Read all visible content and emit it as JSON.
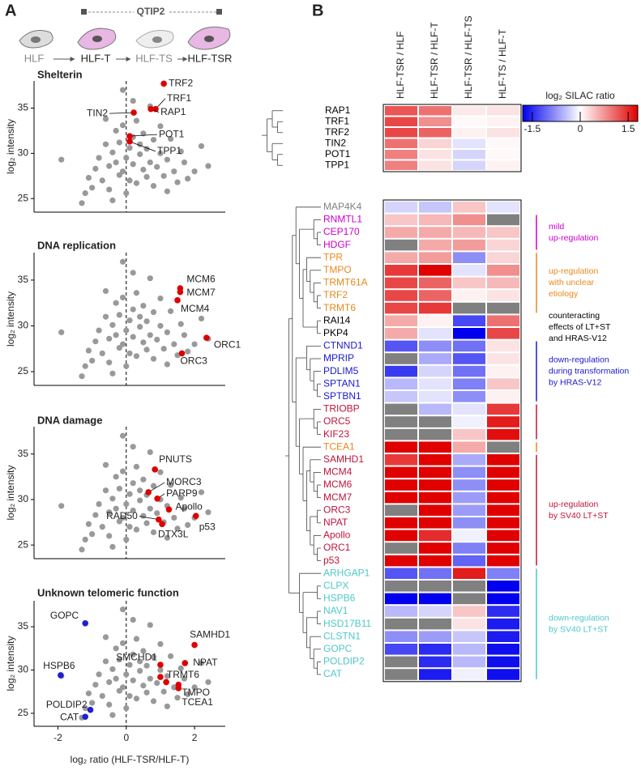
{
  "panels": [
    "A",
    "B"
  ],
  "schematic": {
    "cells": [
      "HLF",
      "HLF-T",
      "HLF-TS",
      "HLF-TSR"
    ],
    "construct": "QTIP2"
  },
  "chart_data": [
    {
      "type": "scatter",
      "title": "Shelterin",
      "color": "#999999",
      "x": [
        -1.9,
        -1.3,
        -1.2,
        -1.1,
        -1.0,
        -0.9,
        -0.8,
        -0.7,
        -0.6,
        -0.5,
        -0.5,
        -0.4,
        -0.3,
        -0.3,
        -0.2,
        -0.2,
        -0.1,
        -0.1,
        0.0,
        0.0,
        0.1,
        0.1,
        0.2,
        0.2,
        0.3,
        0.3,
        0.4,
        0.4,
        0.5,
        0.5,
        0.6,
        0.6,
        0.7,
        0.7,
        0.8,
        0.8,
        0.9,
        1.0,
        1.0,
        1.1,
        1.2,
        1.3,
        1.4,
        1.5,
        1.6,
        1.7,
        1.8,
        2.0,
        2.2,
        2.4,
        -0.1,
        -0.6,
        0.2,
        -0.4,
        1.2
      ],
      "values": [
        29.3,
        24.5,
        25.6,
        27.3,
        26.2,
        28.3,
        29.5,
        27.0,
        31.0,
        28.6,
        26.0,
        30.1,
        29.0,
        32.5,
        27.6,
        31.2,
        33.1,
        28.0,
        29.5,
        25.6,
        30.6,
        27.0,
        31.8,
        28.8,
        33.6,
        26.7,
        29.9,
        31.0,
        28.2,
        32.2,
        30.5,
        27.4,
        35.2,
        29.0,
        31.5,
        26.4,
        28.5,
        30.0,
        33.0,
        27.5,
        29.3,
        31.6,
        28.0,
        26.8,
        30.2,
        29.0,
        27.2,
        28.0,
        30.8,
        28.6,
        37.0,
        33.8,
        35.8,
        24.8,
        25.8
      ],
      "highlights": [
        {
          "color": "#dd0000",
          "x": [
            1.1,
            0.86,
            0.72,
            0.22,
            0.1,
            0.1
          ],
          "values": [
            37.7,
            34.9,
            34.9,
            34.5,
            31.9,
            31.3
          ],
          "labels": [
            "TRF2",
            "TRF1",
            "RAP1",
            "TIN2",
            "POT1",
            "TPP1"
          ]
        }
      ],
      "xlim": [
        -2.7,
        2.9
      ],
      "ylim": [
        23.5,
        38
      ],
      "yticks": [
        25,
        30,
        35
      ],
      "ylabel": "log₂ intensity",
      "vline": 0
    },
    {
      "type": "scatter",
      "title": "DNA replication",
      "color": "#999999",
      "x": [
        -1.9,
        -1.3,
        -1.2,
        -1.1,
        -1.0,
        -0.9,
        -0.8,
        -0.7,
        -0.6,
        -0.5,
        -0.5,
        -0.4,
        -0.3,
        -0.3,
        -0.2,
        -0.2,
        -0.1,
        -0.1,
        0.0,
        0.0,
        0.1,
        0.1,
        0.2,
        0.2,
        0.3,
        0.3,
        0.4,
        0.4,
        0.5,
        0.5,
        0.6,
        0.6,
        0.7,
        0.7,
        0.8,
        0.8,
        0.9,
        1.0,
        1.0,
        1.1,
        1.2,
        1.3,
        1.4,
        1.5,
        1.6,
        1.7,
        1.8,
        2.0,
        2.2,
        2.4,
        -0.1,
        -0.6,
        0.2,
        -0.4,
        1.2
      ],
      "values": [
        29.3,
        24.5,
        25.6,
        27.3,
        26.2,
        28.3,
        29.5,
        27.0,
        31.0,
        28.6,
        26.0,
        30.1,
        29.0,
        32.5,
        27.6,
        31.2,
        33.1,
        28.0,
        29.5,
        25.6,
        30.6,
        27.0,
        31.8,
        28.8,
        33.6,
        26.7,
        29.9,
        31.0,
        28.2,
        32.2,
        30.5,
        27.4,
        35.2,
        29.0,
        31.5,
        26.4,
        28.5,
        30.0,
        33.0,
        27.5,
        29.3,
        31.6,
        28.0,
        26.8,
        30.2,
        29.0,
        27.2,
        28.0,
        30.8,
        28.6,
        37.0,
        33.8,
        35.8,
        24.8,
        25.8
      ],
      "highlights": [
        {
          "color": "#dd0000",
          "x": [
            1.58,
            1.58,
            1.5,
            2.35,
            1.63
          ],
          "values": [
            34.1,
            33.7,
            32.8,
            28.7,
            27.0
          ],
          "labels": [
            "MCM6",
            "MCM7",
            "MCM4",
            "ORC1",
            "ORC3"
          ]
        }
      ],
      "xlim": [
        -2.7,
        2.9
      ],
      "ylim": [
        23.5,
        38
      ],
      "yticks": [
        25,
        30,
        35
      ],
      "ylabel": "log₂ intensity",
      "vline": 0
    },
    {
      "type": "scatter",
      "title": "DNA damage",
      "color": "#999999",
      "x": [
        -1.9,
        -1.3,
        -1.2,
        -1.1,
        -1.0,
        -0.9,
        -0.8,
        -0.7,
        -0.6,
        -0.5,
        -0.5,
        -0.4,
        -0.3,
        -0.3,
        -0.2,
        -0.2,
        -0.1,
        -0.1,
        0.0,
        0.0,
        0.1,
        0.1,
        0.2,
        0.2,
        0.3,
        0.3,
        0.4,
        0.4,
        0.5,
        0.5,
        0.6,
        0.6,
        0.7,
        0.7,
        0.8,
        0.8,
        0.9,
        1.0,
        1.0,
        1.1,
        1.2,
        1.3,
        1.4,
        1.5,
        1.6,
        1.7,
        1.8,
        2.0,
        2.2,
        2.4,
        -0.1,
        -0.6,
        0.2,
        -0.4,
        1.2
      ],
      "values": [
        29.3,
        24.5,
        25.6,
        27.3,
        26.2,
        28.3,
        29.5,
        27.0,
        31.0,
        28.6,
        26.0,
        30.1,
        29.0,
        32.5,
        27.6,
        31.2,
        33.1,
        28.0,
        29.5,
        25.6,
        30.6,
        27.0,
        31.8,
        28.8,
        33.6,
        26.7,
        29.9,
        31.0,
        28.2,
        32.2,
        30.5,
        27.4,
        35.2,
        29.0,
        31.5,
        26.4,
        28.5,
        30.0,
        33.0,
        27.5,
        29.3,
        31.6,
        28.0,
        26.8,
        30.2,
        29.0,
        27.2,
        28.0,
        30.8,
        28.6,
        37.0,
        33.8,
        35.8,
        24.8,
        25.8
      ],
      "highlights": [
        {
          "color": "#dd0000",
          "x": [
            0.84,
            0.65,
            0.91,
            1.25,
            2.04,
            0.95,
            1.05
          ],
          "values": [
            33.3,
            30.8,
            30.1,
            28.9,
            28.2,
            27.8,
            27.3
          ],
          "labels": [
            "PNUTS",
            "MORC3",
            "PARP9",
            "Apollo",
            "p53",
            "RAD50",
            "DTX3L"
          ]
        }
      ],
      "xlim": [
        -2.7,
        2.9
      ],
      "ylim": [
        23.5,
        38
      ],
      "yticks": [
        25,
        30,
        35
      ],
      "ylabel": "log₂ intensity",
      "vline": 0
    },
    {
      "type": "scatter",
      "title": "Unknown telomeric function",
      "color": "#999999",
      "x": [
        -1.9,
        -1.3,
        -1.2,
        -1.1,
        -1.0,
        -0.9,
        -0.8,
        -0.7,
        -0.6,
        -0.5,
        -0.5,
        -0.4,
        -0.3,
        -0.3,
        -0.2,
        -0.2,
        -0.1,
        -0.1,
        0.0,
        0.0,
        0.1,
        0.1,
        0.2,
        0.2,
        0.3,
        0.3,
        0.4,
        0.4,
        0.5,
        0.5,
        0.6,
        0.6,
        0.7,
        0.7,
        0.8,
        0.8,
        0.9,
        1.0,
        1.0,
        1.1,
        1.2,
        1.3,
        1.4,
        1.5,
        1.6,
        1.7,
        1.8,
        2.0,
        2.2,
        2.4,
        -0.1,
        -0.6,
        0.2,
        -0.4,
        1.2
      ],
      "values": [
        29.3,
        24.5,
        25.6,
        27.3,
        26.2,
        28.3,
        29.5,
        27.0,
        31.0,
        28.6,
        26.0,
        30.1,
        29.0,
        32.5,
        27.6,
        31.2,
        33.1,
        28.0,
        29.5,
        25.6,
        30.6,
        27.0,
        31.8,
        28.8,
        33.6,
        26.7,
        29.9,
        31.0,
        28.2,
        32.2,
        30.5,
        27.4,
        35.2,
        29.0,
        31.5,
        26.4,
        28.5,
        30.0,
        33.0,
        27.5,
        29.3,
        31.6,
        28.0,
        26.8,
        30.2,
        29.0,
        27.2,
        28.0,
        30.8,
        28.6,
        37.0,
        33.8,
        35.8,
        24.8,
        25.8
      ],
      "highlights": [
        {
          "color": "#1f1fd0",
          "x": [
            -1.2,
            -1.92,
            -1.05,
            -1.2
          ],
          "values": [
            35.4,
            29.4,
            25.4,
            24.6
          ],
          "labels": [
            "GOPC",
            "HSPB6",
            "POLDIP2",
            "CAT"
          ]
        },
        {
          "color": "#dd0000",
          "x": [
            2.0,
            1.0,
            1.72,
            1.0,
            1.53,
            1.53,
            1.17
          ],
          "values": [
            32.9,
            30.6,
            30.8,
            29.2,
            28.3,
            27.9,
            28.6
          ],
          "labels": [
            "SAMHD1",
            "SMCHD1",
            "NPAT",
            "TRMT6",
            "TMPO",
            "TCEA1",
            null
          ]
        }
      ],
      "xlim": [
        -2.7,
        2.9
      ],
      "ylim": [
        23.5,
        38
      ],
      "yticks": [
        25,
        30,
        35
      ],
      "xticks": [
        -2,
        0,
        2
      ],
      "ylabel": "log₂ intensity",
      "xlabel": "log₂ ratio (HLF-TSR/HLF-T)",
      "vline": 0
    },
    {
      "type": "heatmap",
      "columns": [
        "HLF-TSR / HLF",
        "HLF-TSR / HLF-T",
        "HLF-TSR / HLF-TS",
        "HLF-TS / HLF-T"
      ],
      "colorbar_title": "log₂ SILAC ratio",
      "clim": [
        -1.8,
        1.8
      ],
      "cticks": [
        -1.5,
        0,
        1.5
      ],
      "low_color": "#0000ee",
      "high_color": "#e00000",
      "na_color": "#808080",
      "blocks": [
        {
          "rows": [
            "RAP1",
            "TRF1",
            "TRF2",
            "TIN2",
            "POT1",
            "TPP1"
          ],
          "row_colors": [
            "#000000",
            "#000000",
            "#000000",
            "#000000",
            "#000000",
            "#000000"
          ],
          "values": [
            [
              1.2,
              1.0,
              0.15,
              0.2
            ],
            [
              1.3,
              0.8,
              0.05,
              0.1
            ],
            [
              1.3,
              1.1,
              0.1,
              0.2
            ],
            [
              1.0,
              0.3,
              -0.2,
              0.05
            ],
            [
              0.9,
              0.2,
              -0.3,
              0.05
            ],
            [
              0.9,
              0.2,
              -0.3,
              0.1
            ]
          ]
        },
        {
          "rows": [
            "MAP4K4",
            "RNMTL1",
            "CEP170",
            "HDGF",
            "TPR",
            "TMPO",
            "TRMT61A",
            "TRF2",
            "TRMT6",
            "RAI14",
            "PKP4",
            "CTNND1",
            "MPRIP",
            "PDLIM5",
            "SPTAN1",
            "SPTBN1",
            "TRIOBP",
            "ORC5",
            "KIF23",
            "TCEA1",
            "SAMHD1",
            "MCM4",
            "MCM6",
            "MCM7",
            "ORC3",
            "NPAT",
            "Apollo",
            "ORC1",
            "p53",
            "ARHGAP1",
            "CLPX",
            "HSPB6",
            "NAV1",
            "HSD17B11",
            "CLSTN1",
            "GOPC",
            "POLDIP2",
            "CAT"
          ],
          "row_colors": [
            "#808080",
            "#cc00cc",
            "#cc00cc",
            "#cc00cc",
            "#e8891c",
            "#e8891c",
            "#e8891c",
            "#e8891c",
            "#e8891c",
            "#000000",
            "#000000",
            "#1a1acc",
            "#1a1acc",
            "#1a1acc",
            "#1a1acc",
            "#1a1acc",
            "#c0143c",
            "#c0143c",
            "#c0143c",
            "#e8891c",
            "#c0143c",
            "#c0143c",
            "#c0143c",
            "#c0143c",
            "#c0143c",
            "#c0143c",
            "#c0143c",
            "#c0143c",
            "#c0143c",
            "#4ec8c8",
            "#4ec8c8",
            "#4ec8c8",
            "#4ec8c8",
            "#4ec8c8",
            "#4ec8c8",
            "#4ec8c8",
            "#4ec8c8",
            "#4ec8c8"
          ],
          "values": [
            [
              -0.3,
              -0.4,
              0.4,
              -0.2
            ],
            [
              0.4,
              0.5,
              0.8,
              null
            ],
            [
              0.6,
              0.6,
              0.5,
              0.4
            ],
            [
              null,
              0.6,
              0.7,
              0.3
            ],
            [
              0.6,
              0.7,
              -0.8,
              0.3
            ],
            [
              1.4,
              1.8,
              -0.2,
              0.8
            ],
            [
              1.3,
              1.1,
              0.4,
              0.5
            ],
            [
              1.3,
              1.1,
              0.1,
              0.2
            ],
            [
              1.3,
              1.4,
              null,
              null
            ],
            [
              0.6,
              0.1,
              -1.3,
              1.0
            ],
            [
              0.6,
              -0.2,
              -1.8,
              1.3
            ],
            [
              -1.2,
              -0.8,
              -1.0,
              0.2
            ],
            [
              null,
              -0.6,
              -1.2,
              0.2
            ],
            [
              -1.4,
              -0.3,
              -1.0,
              0.1
            ],
            [
              -0.5,
              -0.2,
              -0.9,
              0.4
            ],
            [
              -0.4,
              -0.2,
              -0.8,
              0.1
            ],
            [
              null,
              -0.5,
              -0.2,
              1.4
            ],
            [
              null,
              null,
              -0.1,
              1.6
            ],
            [
              null,
              null,
              0.4,
              1.7
            ],
            [
              1.8,
              1.8,
              0.6,
              null
            ],
            [
              1.4,
              1.8,
              -0.6,
              1.8
            ],
            [
              1.8,
              1.8,
              -0.8,
              1.8
            ],
            [
              1.8,
              1.8,
              -0.8,
              1.8
            ],
            [
              1.8,
              1.8,
              -0.7,
              1.8
            ],
            [
              null,
              1.8,
              -0.7,
              1.8
            ],
            [
              1.8,
              1.8,
              -0.8,
              1.8
            ],
            [
              1.8,
              1.5,
              -0.1,
              1.8
            ],
            [
              null,
              1.8,
              -0.9,
              1.8
            ],
            [
              1.8,
              1.8,
              -1.1,
              1.8
            ],
            [
              -1.2,
              -1.0,
              1.6,
              -0.9
            ],
            [
              null,
              null,
              null,
              -1.8
            ],
            [
              -1.8,
              -1.8,
              null,
              -1.8
            ],
            [
              -0.5,
              -0.3,
              0.4,
              -1.5
            ],
            [
              null,
              null,
              0.2,
              -1.6
            ],
            [
              -0.8,
              -0.7,
              -0.4,
              -1.6
            ],
            [
              -1.3,
              -1.5,
              -0.5,
              -1.7
            ],
            [
              null,
              -1.5,
              -0.5,
              -1.7
            ],
            [
              null,
              -1.6,
              -0.1,
              -1.7
            ]
          ]
        }
      ],
      "groups": [
        {
          "color": "#cc00cc",
          "first": 1,
          "last": 3,
          "lines": [
            "mild",
            "up-regulation"
          ]
        },
        {
          "color": "#e8891c",
          "first": 4,
          "last": 8,
          "lines": [
            "up-regulation",
            "with unclear",
            "etiology"
          ]
        },
        {
          "color": "#000000",
          "first": 9,
          "last": 10,
          "bracket": false,
          "lines": [
            "counteracting",
            "effects of LT+ST",
            "and HRAS-V12"
          ]
        },
        {
          "color": "#1a1acc",
          "first": 11,
          "last": 15,
          "lines": [
            "down-regulation",
            "during transformation",
            "by HRAS-V12"
          ]
        },
        {
          "color": "#c0143c",
          "first": 16,
          "last": 18
        },
        {
          "color": "#e8891c",
          "first": 19,
          "last": 19
        },
        {
          "color": "#c0143c",
          "first": 20,
          "last": 28,
          "lines": [
            "up-regulation",
            "by SV40 LT+ST"
          ]
        },
        {
          "color": "#4ec8c8",
          "first": 29,
          "last": 37,
          "lines": [
            "down-regulation",
            "by SV40 LT+ST"
          ]
        }
      ]
    }
  ]
}
